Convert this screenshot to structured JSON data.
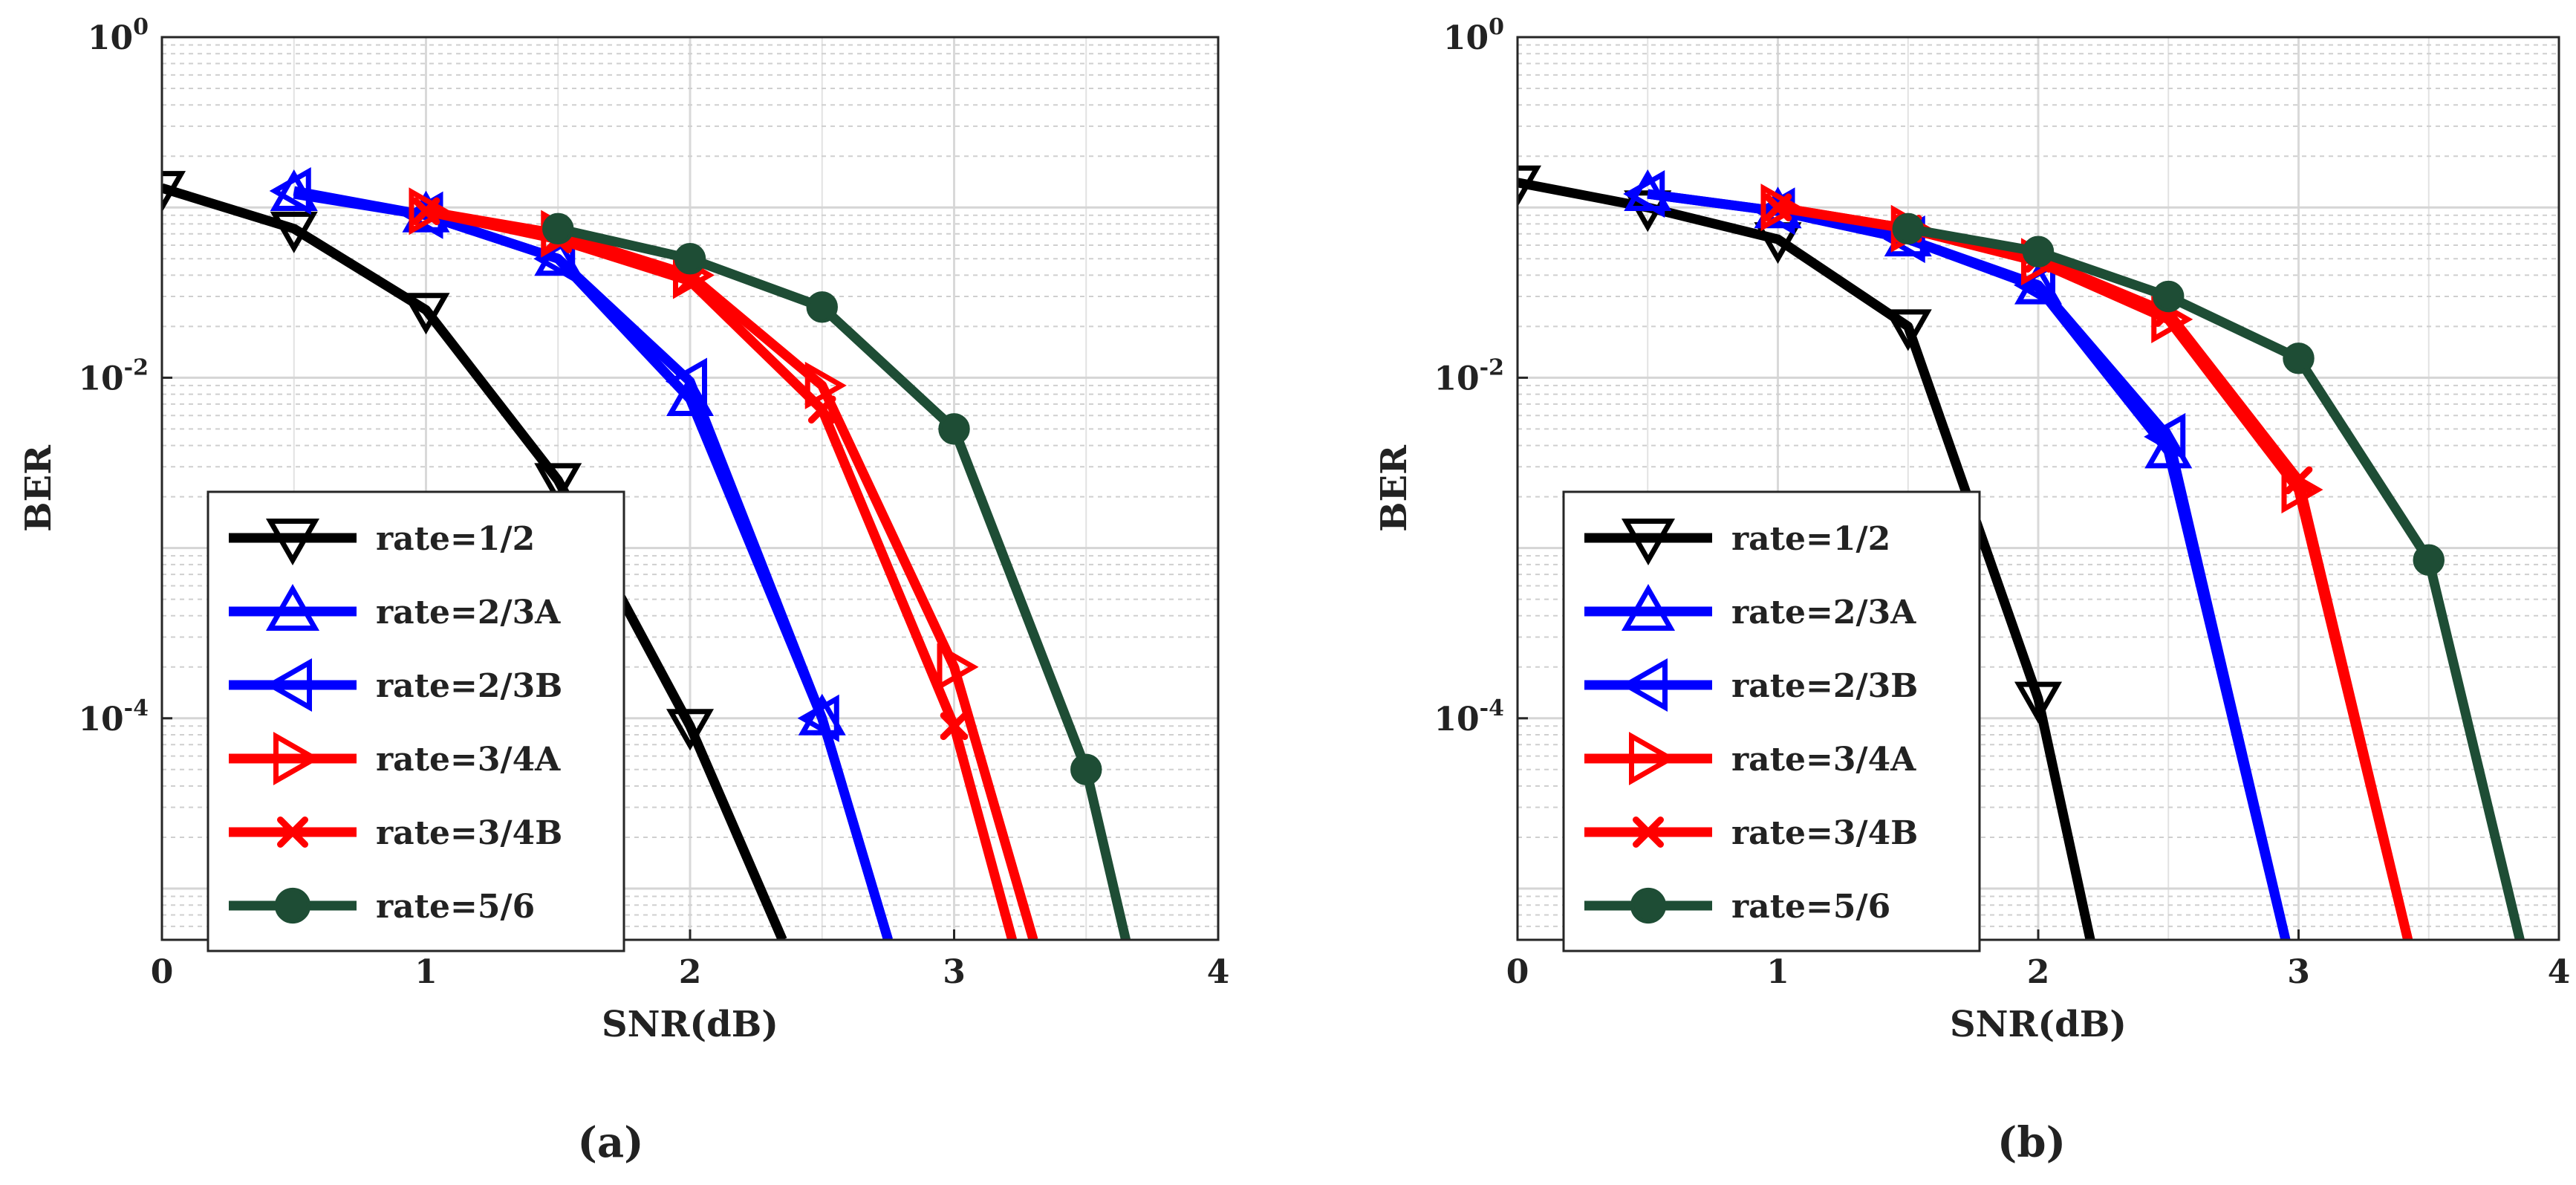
{
  "figure": {
    "panels": [
      "(a)",
      "(b)"
    ]
  },
  "series_style": [
    {
      "name": "rate=1/2",
      "color": "#000000",
      "marker": "triangle-down",
      "marker_fill": "none"
    },
    {
      "name": "rate=2/3A",
      "color": "#0000ff",
      "marker": "triangle-up",
      "marker_fill": "none"
    },
    {
      "name": "rate=2/3B",
      "color": "#0000ff",
      "marker": "triangle-left",
      "marker_fill": "none"
    },
    {
      "name": "rate=3/4A",
      "color": "#ff0000",
      "marker": "triangle-right",
      "marker_fill": "none"
    },
    {
      "name": "rate=3/4B",
      "color": "#ff0000",
      "marker": "x",
      "marker_fill": "none"
    },
    {
      "name": "rate=5/6",
      "color": "#1e4d35",
      "marker": "circle",
      "marker_fill": "#1e4d35"
    }
  ],
  "chart_data": [
    {
      "type": "line",
      "panel_label": "(a)",
      "xlabel": "SNR(dB)",
      "ylabel": "BER",
      "xlim": [
        0,
        4
      ],
      "ylim": [
        5e-06,
        1
      ],
      "yscale": "log",
      "grid": true,
      "minor_grid": true,
      "legend_position": "bottom-left",
      "xticks": [
        "0",
        "1",
        "2",
        "3",
        "4"
      ],
      "yticks": [
        {
          "base": "10",
          "exp": "0",
          "value": 1
        },
        {
          "base": "10",
          "exp": "-2",
          "value": 0.01
        },
        {
          "base": "10",
          "exp": "-4",
          "value": 0.0001
        }
      ],
      "series": [
        {
          "name": "rate=1/2",
          "x": [
            0,
            0.5,
            1,
            1.5,
            2,
            2.35
          ],
          "y": [
            0.13,
            0.075,
            0.025,
            0.0025,
            9e-05,
            5e-06
          ]
        },
        {
          "name": "rate=2/3A",
          "x": [
            0.5,
            1,
            1.5,
            2,
            2.5,
            2.75
          ],
          "y": [
            0.12,
            0.09,
            0.05,
            0.0075,
            0.0001,
            5e-06
          ]
        },
        {
          "name": "rate=2/3B",
          "x": [
            0.5,
            1,
            1.5,
            2,
            2.5,
            2.75
          ],
          "y": [
            0.125,
            0.09,
            0.05,
            0.0095,
            0.0001,
            5e-06
          ]
        },
        {
          "name": "rate=3/4A",
          "x": [
            1,
            1.5,
            2,
            2.5,
            3,
            3.3
          ],
          "y": [
            0.095,
            0.07,
            0.04,
            0.009,
            0.0002,
            5e-06
          ]
        },
        {
          "name": "rate=3/4B",
          "x": [
            1,
            1.5,
            2,
            2.5,
            3,
            3.22
          ],
          "y": [
            0.095,
            0.065,
            0.037,
            0.0065,
            9e-05,
            5e-06
          ]
        },
        {
          "name": "rate=5/6",
          "x": [
            1.5,
            2,
            2.5,
            3,
            3.5,
            3.65
          ],
          "y": [
            0.075,
            0.05,
            0.026,
            0.005,
            5e-05,
            5e-06
          ]
        }
      ]
    },
    {
      "type": "line",
      "panel_label": "(b)",
      "xlabel": "SNR(dB)",
      "ylabel": "BER",
      "xlim": [
        0,
        4
      ],
      "ylim": [
        5e-06,
        1
      ],
      "yscale": "log",
      "grid": true,
      "minor_grid": true,
      "legend_position": "bottom-left",
      "xticks": [
        "0",
        "1",
        "2",
        "3",
        "4"
      ],
      "yticks": [
        {
          "base": "10",
          "exp": "0",
          "value": 1
        },
        {
          "base": "10",
          "exp": "-2",
          "value": 0.01
        },
        {
          "base": "10",
          "exp": "-4",
          "value": 0.0001
        }
      ],
      "series": [
        {
          "name": "rate=1/2",
          "x": [
            0,
            0.5,
            1,
            1.5,
            2,
            2.2
          ],
          "y": [
            0.14,
            0.1,
            0.065,
            0.02,
            0.00013,
            5e-06
          ]
        },
        {
          "name": "rate=2/3A",
          "x": [
            0.5,
            1,
            1.5,
            2,
            2.5,
            2.95
          ],
          "y": [
            0.12,
            0.095,
            0.065,
            0.034,
            0.0037,
            5e-06
          ]
        },
        {
          "name": "rate=2/3B",
          "x": [
            0.5,
            1,
            1.5,
            2,
            2.5,
            2.95
          ],
          "y": [
            0.12,
            0.095,
            0.065,
            0.035,
            0.0045,
            5e-06
          ]
        },
        {
          "name": "rate=3/4A",
          "x": [
            1,
            1.5,
            2,
            2.5,
            3,
            3.42
          ],
          "y": [
            0.1,
            0.075,
            0.048,
            0.022,
            0.0022,
            5e-06
          ]
        },
        {
          "name": "rate=3/4B",
          "x": [
            1,
            1.5,
            2,
            2.5,
            3,
            3.42
          ],
          "y": [
            0.1,
            0.075,
            0.05,
            0.024,
            0.0025,
            5e-06
          ]
        },
        {
          "name": "rate=5/6",
          "x": [
            1.5,
            2,
            2.5,
            3,
            3.5,
            3.85
          ],
          "y": [
            0.075,
            0.055,
            0.03,
            0.013,
            0.00085,
            5e-06
          ]
        }
      ]
    }
  ]
}
